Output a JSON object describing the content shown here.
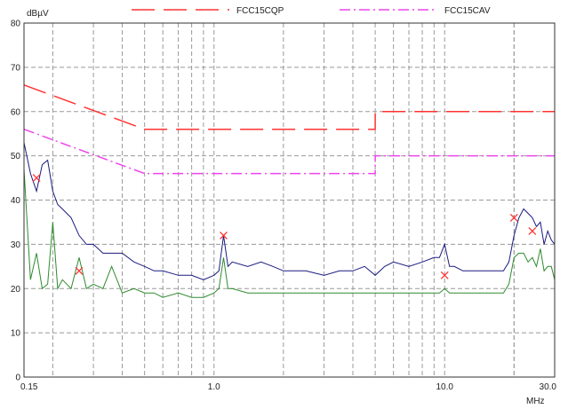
{
  "chart_data": {
    "type": "line",
    "ylabel": "dBµV",
    "xlabel": "MHz",
    "x_scale": "log",
    "xlim": [
      0.15,
      30.0
    ],
    "ylim": [
      0,
      80
    ],
    "x_ticks": [
      0.15,
      1.0,
      10.0,
      30.0
    ],
    "x_tick_labels": [
      "0.15",
      "1.0",
      "10.0",
      "30.0"
    ],
    "y_ticks": [
      0,
      10,
      20,
      30,
      40,
      50,
      60,
      70,
      80
    ],
    "y_tick_labels": [
      "0",
      "10",
      "20",
      "30",
      "40",
      "50",
      "60",
      "70",
      "80"
    ],
    "grid": true,
    "legend_position": "top",
    "limit_lines": [
      {
        "name": "FCC15CQP",
        "color": "#ff3333",
        "dash": "long-dash",
        "points": [
          [
            0.15,
            66
          ],
          [
            0.5,
            56
          ],
          [
            5.0,
            56
          ],
          [
            5.0,
            60
          ],
          [
            30.0,
            60
          ]
        ]
      },
      {
        "name": "FCC15CAV",
        "color": "#ee44ee",
        "dash": "dash-dot",
        "points": [
          [
            0.15,
            56
          ],
          [
            0.5,
            46
          ],
          [
            5.0,
            46
          ],
          [
            5.0,
            50
          ],
          [
            30.0,
            50
          ]
        ]
      }
    ],
    "series": [
      {
        "color": "#1a1a80",
        "x": [
          0.15,
          0.16,
          0.17,
          0.18,
          0.19,
          0.2,
          0.21,
          0.22,
          0.24,
          0.26,
          0.28,
          0.3,
          0.33,
          0.36,
          0.4,
          0.45,
          0.5,
          0.55,
          0.6,
          0.7,
          0.8,
          0.9,
          1.0,
          1.05,
          1.1,
          1.15,
          1.2,
          1.4,
          1.6,
          1.8,
          2.0,
          2.5,
          3.0,
          3.5,
          4.0,
          4.5,
          5.0,
          5.5,
          6.0,
          7.0,
          8.0,
          9.0,
          9.5,
          10.0,
          10.5,
          11.0,
          12.0,
          14.0,
          16.0,
          18.0,
          19.0,
          20.0,
          21.0,
          22.0,
          23.0,
          24.0,
          25.0,
          26.0,
          27.0,
          28.0,
          29.0,
          30.0
        ],
        "y": [
          53,
          46,
          42,
          48,
          49,
          42,
          39,
          38,
          36,
          32,
          30,
          30,
          28,
          28,
          28,
          26,
          25,
          24,
          24,
          23,
          23,
          22,
          23,
          24,
          32,
          25,
          26,
          25,
          26,
          25,
          24,
          24,
          23,
          24,
          24,
          25,
          23,
          25,
          26,
          25,
          26,
          27,
          27,
          30,
          25,
          25,
          24,
          24,
          24,
          24,
          26,
          32,
          36,
          38,
          37,
          36,
          34,
          35,
          30,
          33,
          31,
          30
        ]
      },
      {
        "color": "#2e8b2e",
        "x": [
          0.15,
          0.16,
          0.17,
          0.18,
          0.19,
          0.2,
          0.21,
          0.22,
          0.24,
          0.26,
          0.28,
          0.3,
          0.33,
          0.36,
          0.4,
          0.45,
          0.5,
          0.55,
          0.6,
          0.7,
          0.8,
          0.9,
          1.0,
          1.05,
          1.1,
          1.15,
          1.2,
          1.4,
          1.6,
          1.8,
          2.0,
          2.5,
          3.0,
          3.5,
          4.0,
          4.5,
          5.0,
          5.5,
          6.0,
          7.0,
          8.0,
          9.0,
          9.5,
          10.0,
          10.5,
          11.0,
          12.0,
          14.0,
          16.0,
          18.0,
          19.0,
          20.0,
          21.0,
          22.0,
          23.0,
          24.0,
          25.0,
          26.0,
          27.0,
          28.0,
          29.0,
          30.0
        ],
        "y": [
          47,
          22,
          28,
          20,
          21,
          35,
          20,
          22,
          20,
          27,
          20,
          21,
          20,
          25,
          19,
          20,
          19,
          19,
          18,
          19,
          18,
          18,
          19,
          20,
          27,
          20,
          20,
          19,
          19,
          19,
          19,
          19,
          19,
          19,
          19,
          19,
          19,
          19,
          19,
          19,
          19,
          19,
          19,
          20,
          19,
          19,
          19,
          19,
          19,
          19,
          21,
          27,
          28,
          28,
          26,
          27,
          25,
          29,
          24,
          25,
          25,
          22
        ]
      }
    ],
    "markers": [
      {
        "x": 0.17,
        "y": 45,
        "color": "#ff3333"
      },
      {
        "x": 0.26,
        "y": 24,
        "color": "#ff3333"
      },
      {
        "x": 1.1,
        "y": 32,
        "color": "#ff3333"
      },
      {
        "x": 10.0,
        "y": 23,
        "color": "#ff3333"
      },
      {
        "x": 20.0,
        "y": 36,
        "color": "#ff3333"
      },
      {
        "x": 24.0,
        "y": 33,
        "color": "#ff3333"
      }
    ]
  }
}
